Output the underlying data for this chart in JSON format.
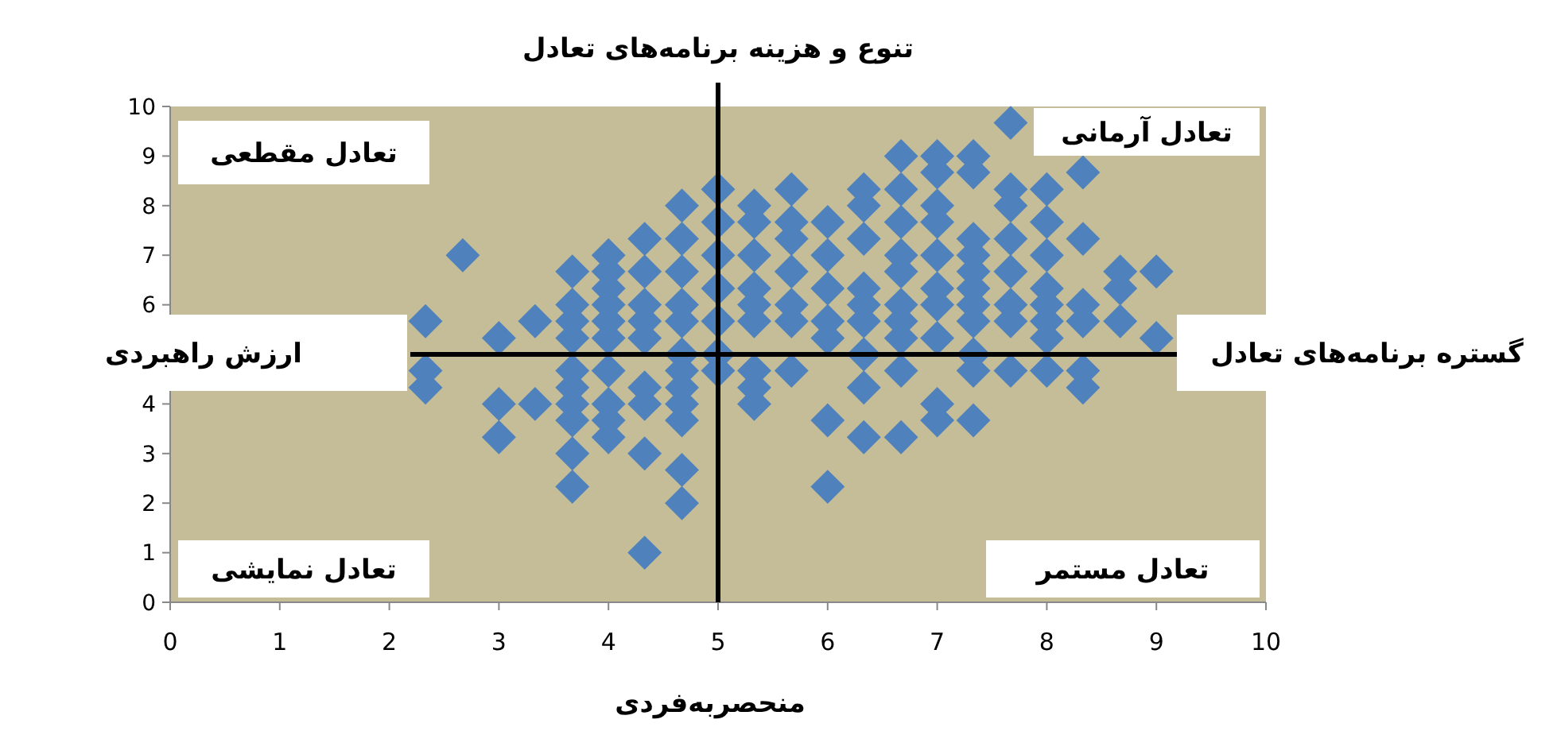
{
  "chart_data": {
    "type": "scatter",
    "xlabel": "منحصربه‌فردی",
    "ylabel": "ارزش راهبردی",
    "xlim": [
      0,
      10
    ],
    "ylim": [
      0,
      10
    ],
    "xticks": [
      0,
      1,
      2,
      3,
      4,
      5,
      6,
      7,
      8,
      9,
      10
    ],
    "yticks": [
      0,
      1,
      2,
      3,
      4,
      {
        "value": 5,
        "label": null
      },
      6,
      7,
      8,
      9,
      10
    ],
    "grid": false,
    "marker": "diamond",
    "ref_lines": [
      {
        "axis": "x",
        "value": 5,
        "label": "تنوع و هزینه برنامه‌های تعادل",
        "color": "#000000"
      },
      {
        "axis": "y",
        "value": 5,
        "label": "گستره برنامه‌های تعادل",
        "color": "#000000"
      }
    ],
    "annotations": [
      "تعادل مقطعی",
      "تعادل آرمانی",
      "تعادل نمایشی",
      "تعادل مستمر"
    ],
    "series": [
      {
        "color": "#4f81bd",
        "x": [
          2.33,
          2.33,
          2.33,
          2.67,
          3,
          3,
          3,
          3.33,
          3.33,
          3.67,
          3.67,
          3.67,
          3.67,
          3.67,
          3.67,
          3.67,
          3.67,
          3.67,
          3.67,
          4,
          4,
          4,
          4,
          4,
          4,
          4,
          4,
          4,
          4,
          4.33,
          4.33,
          4.33,
          4.33,
          4.33,
          4.33,
          4.33,
          4.33,
          4.33,
          4.67,
          4.67,
          4.67,
          4.67,
          4.67,
          4.67,
          4.67,
          4.67,
          4.67,
          4.67,
          4.67,
          4.67,
          5,
          5,
          5,
          5,
          5,
          5,
          5,
          5.33,
          5.33,
          5.33,
          5.33,
          5.33,
          5.33,
          5.33,
          5.33,
          5.33,
          5.67,
          5.67,
          5.67,
          5.67,
          5.67,
          5.67,
          5.67,
          6,
          6,
          6,
          6,
          6,
          6,
          6,
          6.33,
          6.33,
          6.33,
          6.33,
          6.33,
          6.33,
          6.33,
          6.33,
          6.33,
          6.67,
          6.67,
          6.67,
          6.67,
          6.67,
          6.67,
          6.67,
          6.67,
          6.67,
          6.67,
          7,
          7,
          7,
          7,
          7,
          7,
          7,
          7,
          7,
          7,
          7.33,
          7.33,
          7.33,
          7.33,
          7.33,
          7.33,
          7.33,
          7.33,
          7.33,
          7.33,
          7.33,
          7.67,
          7.67,
          7.67,
          7.67,
          7.67,
          7.67,
          7.67,
          7.67,
          8,
          8,
          8,
          8,
          8,
          8,
          8,
          8,
          8.33,
          8.33,
          8.33,
          8.33,
          8.33,
          8.33,
          8.67,
          8.67,
          8.67,
          9,
          9
        ],
        "values": [
          5.67,
          4.67,
          4.33,
          7,
          5.33,
          4,
          3.33,
          5.67,
          4,
          6.67,
          6,
          5.67,
          5.33,
          4.67,
          4.33,
          4,
          3.67,
          3,
          2.33,
          7,
          6.67,
          6.33,
          6,
          5.67,
          5.33,
          4.67,
          4,
          3.67,
          3.33,
          7.33,
          6.67,
          6,
          5.67,
          5.33,
          4.33,
          4,
          3,
          1,
          8,
          7.33,
          6.67,
          6,
          5.67,
          5,
          4.67,
          4.33,
          4,
          3.67,
          2.67,
          2,
          8.33,
          7.67,
          7,
          6.33,
          5.67,
          5,
          4.67,
          8,
          7.67,
          7,
          6.33,
          6,
          5.67,
          4.67,
          4.33,
          4,
          8.33,
          7.67,
          7.33,
          6.67,
          6,
          5.67,
          4.67,
          7.67,
          7,
          6.33,
          5.67,
          5.33,
          3.67,
          2.33,
          8.33,
          8,
          7.33,
          6.33,
          6,
          5.67,
          5,
          4.33,
          3.33,
          9,
          8.33,
          7.67,
          7,
          6.67,
          6,
          5.67,
          5.33,
          4.67,
          3.33,
          9,
          8.67,
          8,
          7.67,
          7,
          6.33,
          6,
          5.33,
          4,
          3.67,
          9,
          8.67,
          7.33,
          7,
          6.67,
          6.33,
          6,
          5.67,
          5,
          4.67,
          3.67,
          9.67,
          8.33,
          8,
          7.33,
          6.67,
          6,
          5.67,
          4.67,
          8.33,
          7.67,
          7,
          6.33,
          6,
          5.67,
          5.33,
          4.67,
          8.67,
          7.33,
          6,
          5.67,
          4.67,
          4.33,
          6.67,
          6.33,
          5.67,
          6.67,
          5.33
        ]
      }
    ]
  }
}
